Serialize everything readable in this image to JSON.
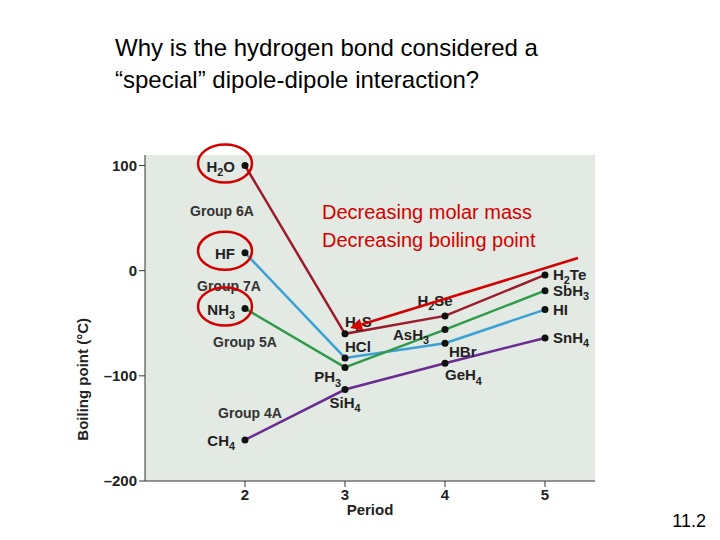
{
  "chart_data": {
    "type": "line",
    "title": "Why is the hydrogen bond considered a “special” dipole-dipole interaction?",
    "x_label": "Period",
    "y_label": "Boiling point (°C)",
    "x": [
      2,
      3,
      4,
      5
    ],
    "xlim": [
      1,
      5.5
    ],
    "xticks": [
      2,
      3,
      4,
      5
    ],
    "ylim": [
      -200,
      110
    ],
    "yticks": [
      {
        "value": -200,
        "label": "–200"
      },
      {
        "value": -100,
        "label": "–100"
      },
      0,
      100
    ],
    "grid": false,
    "marker": "circle",
    "series": [
      {
        "name": "Group 6A",
        "color": "#9b1c2c",
        "values": [
          100,
          -60,
          -43,
          -4
        ],
        "point_labels": [
          "H2O",
          "H2S",
          "H2Se",
          "H2Te"
        ]
      },
      {
        "name": "Group 7A",
        "color": "#3aa0d5",
        "values": [
          17,
          -83,
          -69,
          -37
        ],
        "point_labels": [
          "HF",
          "HCl",
          "HBr",
          "HI"
        ]
      },
      {
        "name": "Group 5A",
        "color": "#2f9a4a",
        "values": [
          -36,
          -92,
          -56,
          -19
        ],
        "point_labels": [
          "NH3",
          "PH3",
          "AsH3",
          "SbH3"
        ]
      },
      {
        "name": "Group 4A",
        "color": "#6b2c91",
        "values": [
          -161,
          -113,
          -88,
          -64
        ],
        "point_labels": [
          "CH4",
          "SiH4",
          "GeH4",
          "SnH4"
        ]
      }
    ],
    "annotations": [
      "Decreasing molar mass",
      "Decreasing boiling point"
    ],
    "footer": "11.2"
  }
}
